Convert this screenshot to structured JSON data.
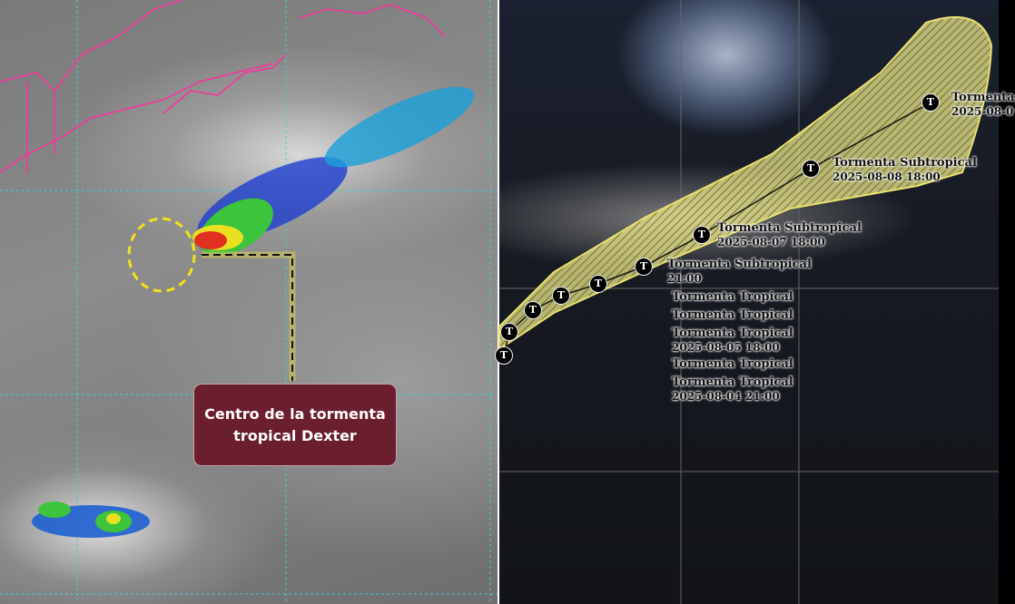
{
  "left_panel": {
    "callout_text": "Centro de la tormenta tropical Dexter",
    "callout_color": "#6b1e2e",
    "circle_color": "#f2e21a",
    "grid_color": "#3fd0d0",
    "coastline_color": "#ff2fa0"
  },
  "right_panel": {
    "cone_color": "#f0ec8a",
    "marker_icon": "T",
    "positions": [
      {
        "label": "Tormenta Tropical",
        "time": "2025-08-04 21:00"
      },
      {
        "label": "Tormenta Tropical",
        "time": ""
      },
      {
        "label": "Tormenta Tropical",
        "time": "2025-08-05 18:00"
      },
      {
        "label": "Tormenta Tropical",
        "time": ""
      },
      {
        "label": "Tormenta Tropical",
        "time": ""
      },
      {
        "label": "Tormenta Subtropical",
        "time": "21:00"
      },
      {
        "label": "Tormenta Subtropical",
        "time": "2025-08-07 18:00"
      },
      {
        "label": "Tormenta Subtropical",
        "time": "2025-08-08 18:00"
      },
      {
        "label": "Tormenta",
        "time": "2025-08-0"
      }
    ]
  }
}
